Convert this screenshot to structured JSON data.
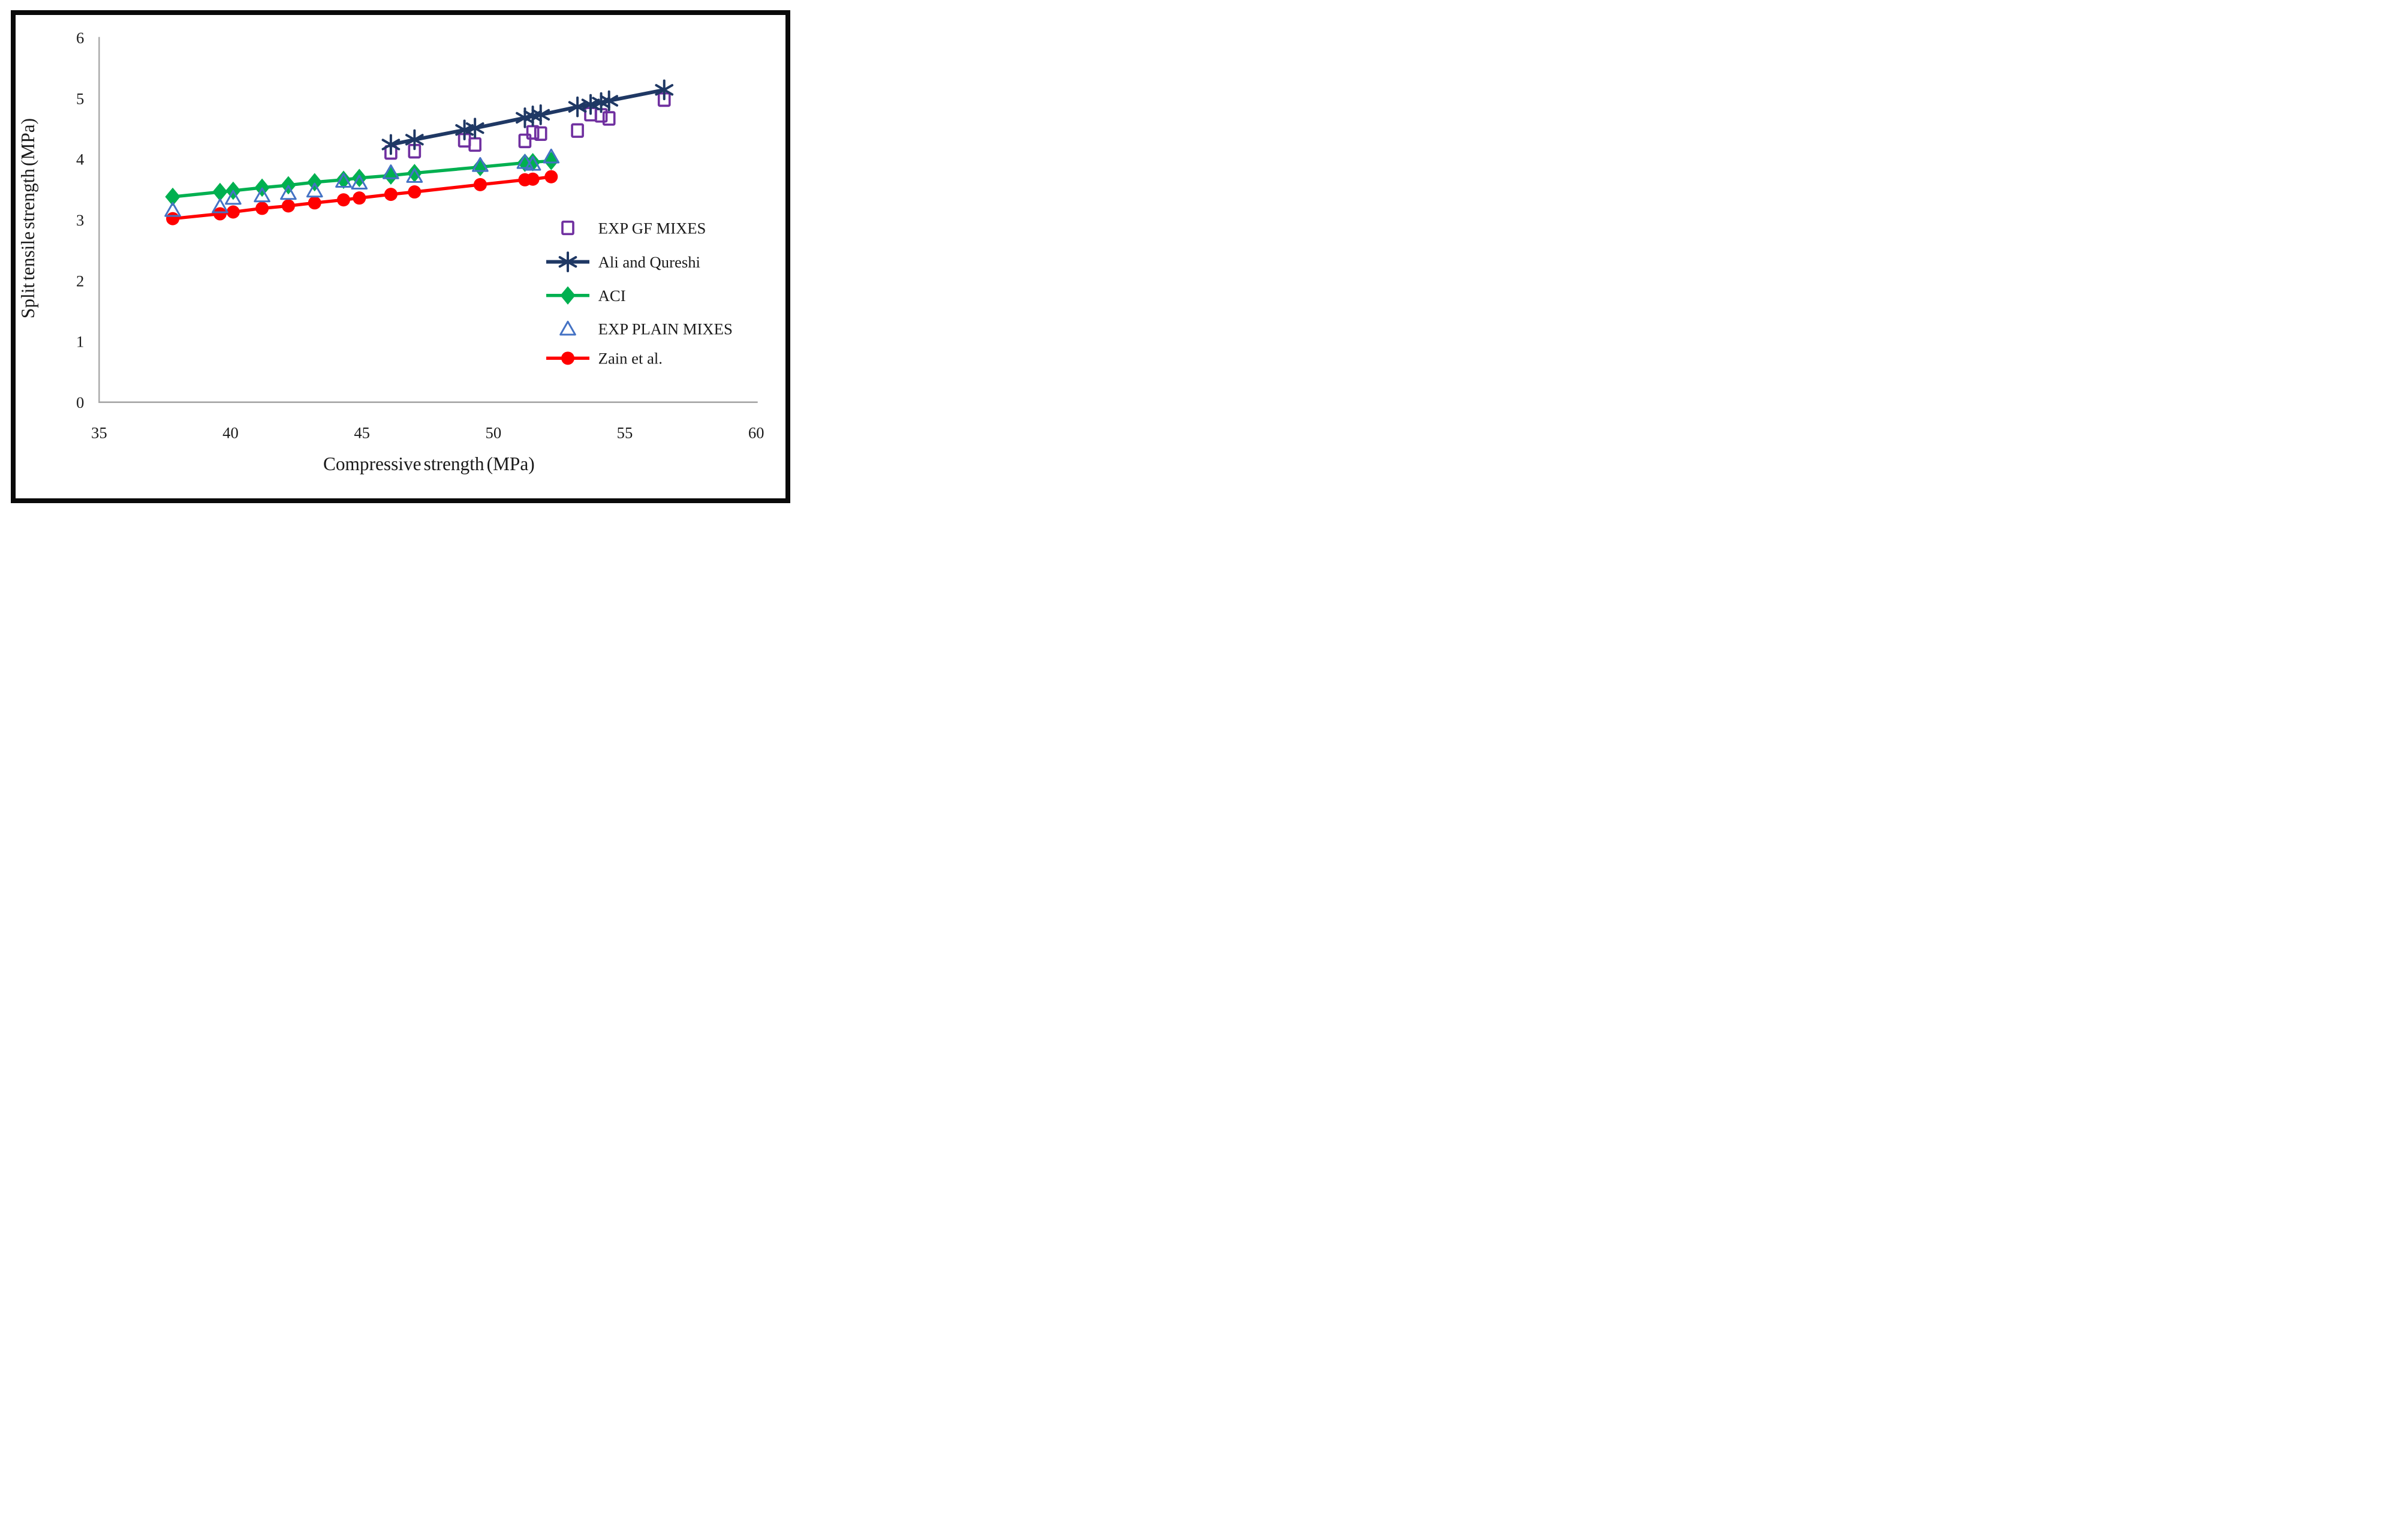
{
  "chart_data": {
    "type": "scatter",
    "title": "",
    "xlabel": "Compressive strength (MPa)",
    "ylabel": "Split tensile strength (MPa)",
    "xlim": [
      35,
      60
    ],
    "ylim": [
      0,
      6
    ],
    "x_ticks": [
      35,
      40,
      45,
      50,
      55,
      60
    ],
    "y_ticks": [
      0,
      1,
      2,
      3,
      4,
      5,
      6
    ],
    "grid": false,
    "legend_position": "right-middle",
    "axis_color": "#a6a6a6",
    "text_color": "#1a1a1a",
    "series": [
      {
        "name": "EXP GF MIXES",
        "type": "scatter",
        "marker": "open-square",
        "color": "#7030A0",
        "points": [
          [
            46.1,
            4.11
          ],
          [
            47.0,
            4.13
          ],
          [
            48.9,
            4.31
          ],
          [
            49.3,
            4.24
          ],
          [
            51.2,
            4.3
          ],
          [
            51.5,
            4.44
          ],
          [
            51.8,
            4.42
          ],
          [
            53.2,
            4.47
          ],
          [
            53.7,
            4.74
          ],
          [
            54.1,
            4.72
          ],
          [
            54.4,
            4.67
          ],
          [
            56.5,
            4.98
          ]
        ]
      },
      {
        "name": "Ali and Qureshi",
        "type": "line",
        "marker": "asterisk",
        "color": "#1F3864",
        "points": [
          [
            46.1,
            4.24
          ],
          [
            47.0,
            4.32
          ],
          [
            48.9,
            4.48
          ],
          [
            49.3,
            4.51
          ],
          [
            51.2,
            4.68
          ],
          [
            51.5,
            4.71
          ],
          [
            51.8,
            4.73
          ],
          [
            53.2,
            4.86
          ],
          [
            53.7,
            4.9
          ],
          [
            54.1,
            4.93
          ],
          [
            54.4,
            4.96
          ],
          [
            56.5,
            5.14
          ]
        ]
      },
      {
        "name": "ACI",
        "type": "line",
        "marker": "diamond",
        "color": "#00B050",
        "points": [
          [
            37.8,
            3.38
          ],
          [
            39.6,
            3.46
          ],
          [
            40.1,
            3.48
          ],
          [
            41.2,
            3.53
          ],
          [
            42.2,
            3.57
          ],
          [
            43.2,
            3.62
          ],
          [
            44.3,
            3.66
          ],
          [
            44.9,
            3.69
          ],
          [
            46.1,
            3.73
          ],
          [
            47.0,
            3.77
          ],
          [
            49.5,
            3.87
          ],
          [
            51.2,
            3.94
          ],
          [
            51.5,
            3.95
          ],
          [
            52.2,
            3.97
          ]
        ]
      },
      {
        "name": "EXP PLAIN MIXES",
        "type": "scatter",
        "marker": "open-triangle",
        "color": "#4472C4",
        "points": [
          [
            37.8,
            3.16
          ],
          [
            39.6,
            3.22
          ],
          [
            40.1,
            3.36
          ],
          [
            41.2,
            3.4
          ],
          [
            42.2,
            3.44
          ],
          [
            43.2,
            3.48
          ],
          [
            44.3,
            3.64
          ],
          [
            44.9,
            3.61
          ],
          [
            46.1,
            3.78
          ],
          [
            47.0,
            3.72
          ],
          [
            49.5,
            3.9
          ],
          [
            51.2,
            3.95
          ],
          [
            51.5,
            3.92
          ],
          [
            52.2,
            4.04
          ]
        ]
      },
      {
        "name": "Zain et al.",
        "type": "line",
        "marker": "circle",
        "color": "#FF0000",
        "points": [
          [
            37.8,
            3.02
          ],
          [
            39.6,
            3.1
          ],
          [
            40.1,
            3.13
          ],
          [
            41.2,
            3.19
          ],
          [
            42.2,
            3.23
          ],
          [
            43.2,
            3.28
          ],
          [
            44.3,
            3.33
          ],
          [
            44.9,
            3.36
          ],
          [
            46.1,
            3.42
          ],
          [
            47.0,
            3.46
          ],
          [
            49.5,
            3.58
          ],
          [
            51.2,
            3.66
          ],
          [
            51.5,
            3.67
          ],
          [
            52.2,
            3.71
          ]
        ]
      }
    ]
  }
}
